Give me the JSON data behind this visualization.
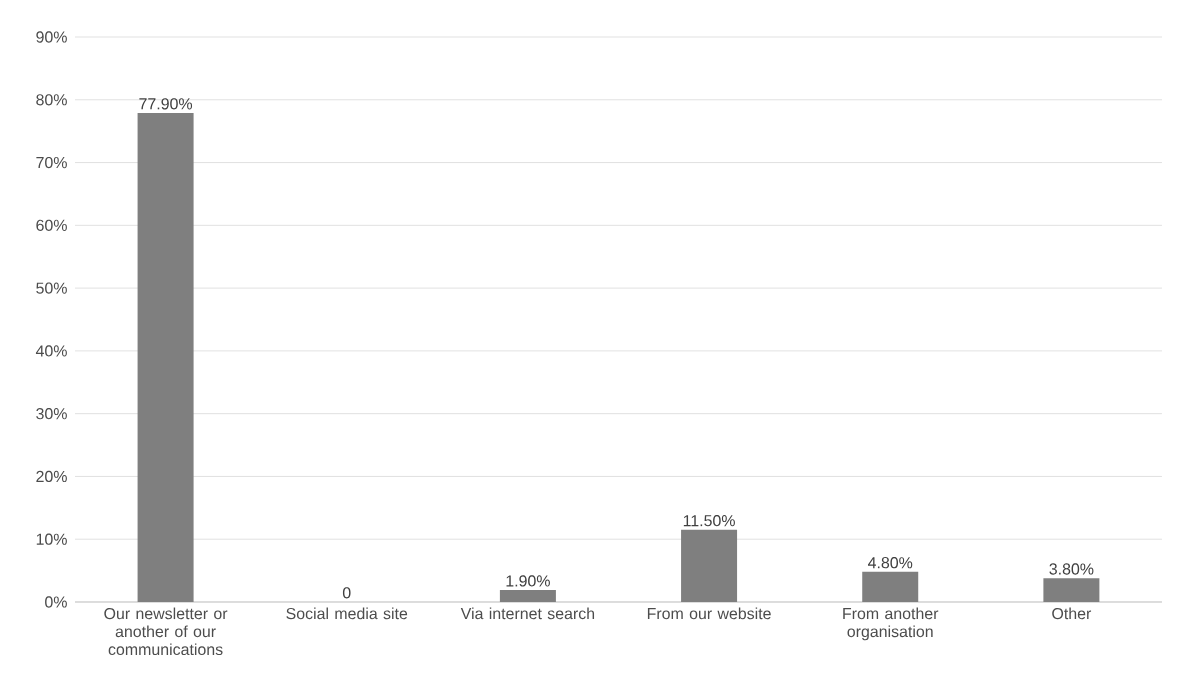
{
  "chart_data": {
    "type": "bar",
    "categories": [
      "Our newsletter or another of our communications",
      "Social media site",
      "Via internet search",
      "From our website",
      "From another organisation",
      "Other"
    ],
    "values": [
      77.9,
      0,
      1.9,
      11.5,
      4.8,
      3.8
    ],
    "value_labels": [
      "77.90%",
      "0",
      "1.90%",
      "11.50%",
      "4.80%",
      "3.80%"
    ],
    "color": "#7f7f7f",
    "ylim": [
      0,
      90
    ],
    "yticks": [
      {
        "value": 0,
        "label": "0%"
      },
      {
        "value": 10,
        "label": "10%"
      },
      {
        "value": 20,
        "label": "20%"
      },
      {
        "value": 30,
        "label": "30%"
      },
      {
        "value": 40,
        "label": "40%"
      },
      {
        "value": 50,
        "label": "50%"
      },
      {
        "value": 60,
        "label": "60%"
      },
      {
        "value": 70,
        "label": "70%"
      },
      {
        "value": 80,
        "label": "80%"
      },
      {
        "value": 90,
        "label": "90%"
      }
    ],
    "grid": "y"
  }
}
